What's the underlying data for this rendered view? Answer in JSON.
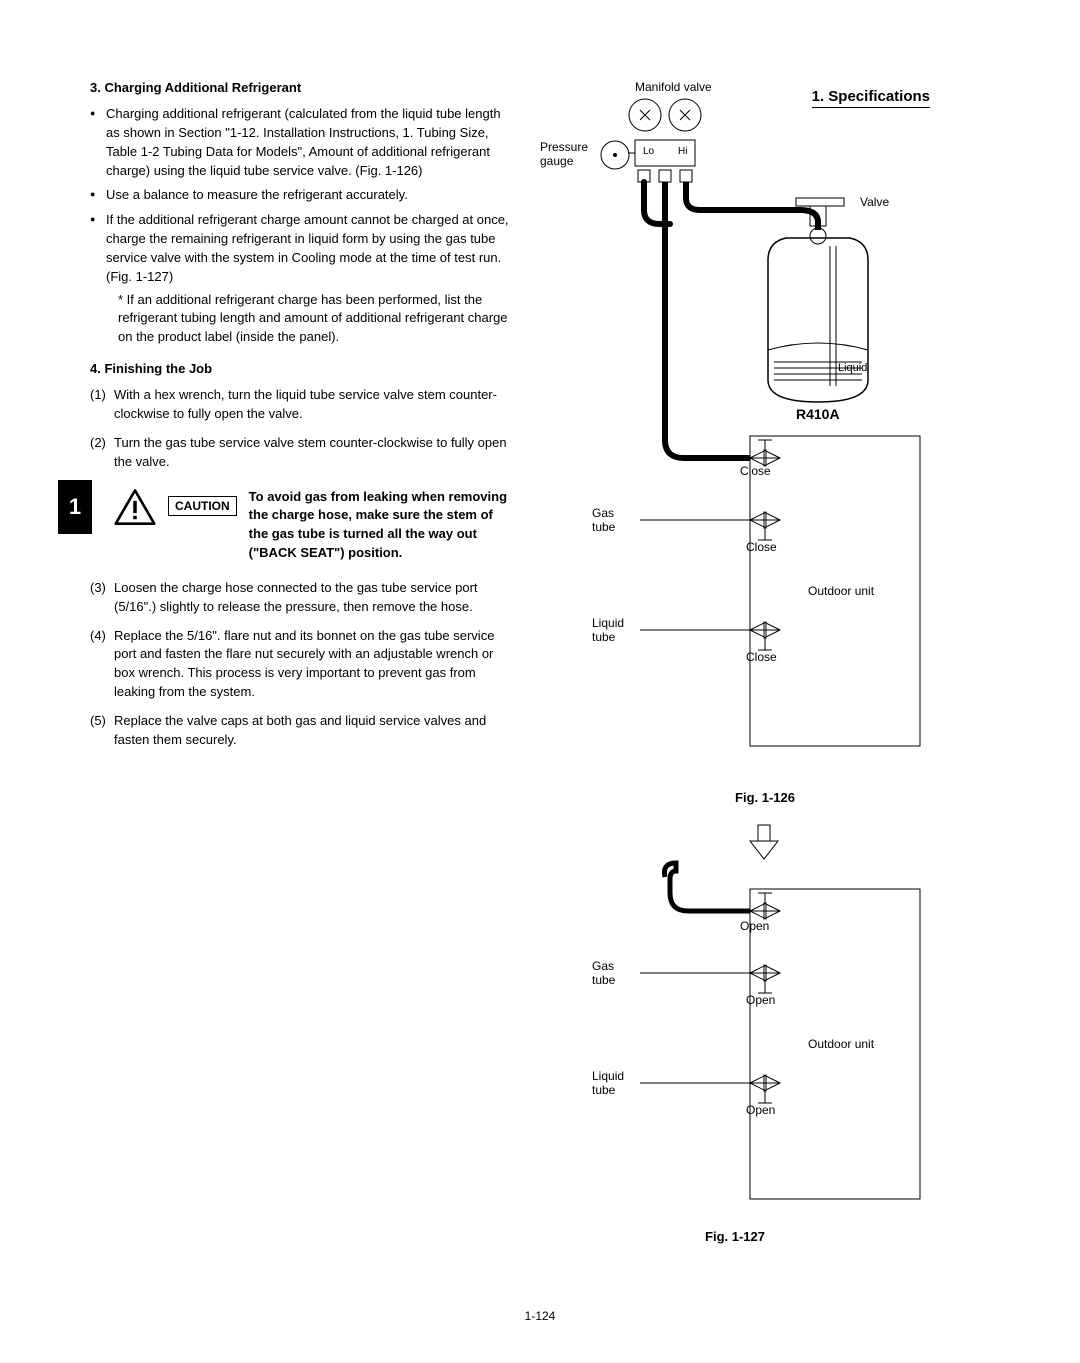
{
  "header": {
    "section_label": "1. Specifications"
  },
  "side_tab": "1",
  "page_number": "1-124",
  "section3": {
    "heading": "3. Charging Additional Refrigerant",
    "bullets": [
      "Charging additional refrigerant (calculated from the liquid tube length as shown in Section \"1-12. Installation Instructions, 1. Tubing Size, Table 1-2 Tubing Data for Models\", Amount of additional refrigerant charge) using the liquid tube service valve. (Fig. 1-126)",
      "Use a balance to measure the refrigerant accurately.",
      "If the additional refrigerant charge amount cannot be charged at once, charge the remaining refrigerant in liquid form by using the gas tube service valve with the system in Cooling mode at the time of test run. (Fig. 1-127)"
    ],
    "sub_note": "* If an additional refrigerant charge has been performed, list the refrigerant tubing length and amount of additional refrigerant charge on the product label (inside the panel)."
  },
  "section4": {
    "heading": "4. Finishing the Job",
    "items": [
      {
        "num": "(1)",
        "text": "With a hex wrench, turn the liquid tube service valve stem counter-clockwise to fully open the valve."
      },
      {
        "num": "(2)",
        "text": "Turn the gas tube service valve stem counter-clockwise to fully open the valve."
      },
      {
        "num": "(3)",
        "text": "Loosen the charge hose connected to the gas tube service port (5/16\".) slightly to release the pressure, then remove the hose."
      },
      {
        "num": "(4)",
        "text": "Replace the 5/16\". flare nut and its bonnet on the gas tube service port and fasten the flare nut securely with an adjustable wrench or box wrench. This process is very important to prevent gas from leaking from the system."
      },
      {
        "num": "(5)",
        "text": "Replace the valve caps at both gas and liquid service valves and fasten them securely."
      }
    ],
    "caution": {
      "label": "CAUTION",
      "text": "To avoid gas from leaking when removing the charge hose, make sure the stem of the gas tube is turned all the way out (\"BACK SEAT\") position."
    }
  },
  "fig126": {
    "caption": "Fig. 1-126",
    "labels": {
      "manifold_valve": "Manifold valve",
      "pressure_gauge": "Pressure gauge",
      "lo": "Lo",
      "hi": "Hi",
      "valve": "Valve",
      "liquid": "Liquid",
      "refrigerant": "R410A",
      "close": "Close",
      "gas_tube": "Gas tube",
      "liquid_tube": "Liquid tube",
      "outdoor_unit": "Outdoor unit"
    }
  },
  "fig127": {
    "caption": "Fig. 1-127",
    "labels": {
      "open": "Open",
      "gas_tube": "Gas tube",
      "liquid_tube": "Liquid tube",
      "outdoor_unit": "Outdoor unit"
    }
  },
  "colors": {
    "text": "#000000",
    "line": "#000000",
    "bg": "#ffffff",
    "tab_bg": "#000000",
    "tab_fg": "#ffffff"
  }
}
